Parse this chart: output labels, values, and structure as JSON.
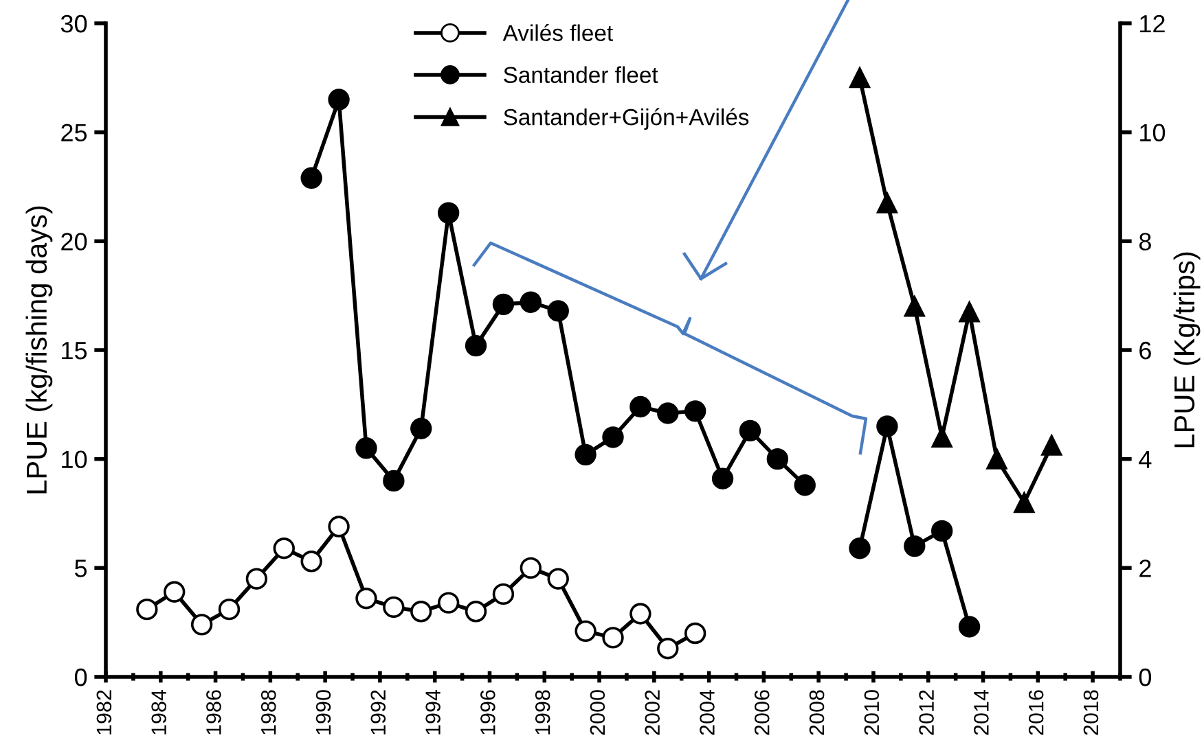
{
  "chart_data": {
    "type": "line",
    "ylabel": "LPUE (kg/fishing days)",
    "y2label": "LPUE (Kg/trips)",
    "xlim": [
      1982,
      2019
    ],
    "xticks": [
      1982,
      1984,
      1986,
      1988,
      1990,
      1992,
      1994,
      1996,
      1998,
      2000,
      2002,
      2004,
      2006,
      2008,
      2010,
      2012,
      2014,
      2016,
      2018
    ],
    "ylim": [
      0,
      30
    ],
    "yticks": [
      0,
      5,
      10,
      15,
      20,
      25,
      30
    ],
    "y2lim": [
      0,
      12
    ],
    "y2ticks": [
      0,
      2,
      4,
      6,
      8,
      10,
      12
    ],
    "grid": false,
    "legend": "top",
    "line_style": "solid",
    "series": [
      {
        "name": "Avilés fleet",
        "color": "#ffffff",
        "marker": "circle",
        "x": [
          1983.5,
          1984.5,
          1985.5,
          1986.5,
          1987.5,
          1988.5,
          1989.5,
          1990.5,
          1991.5,
          1992.5,
          1993.5,
          1994.5,
          1995.5,
          1996.5,
          1997.5,
          1998.5,
          1999.5,
          2000.5,
          2001.5,
          2002.5,
          2003.5
        ],
        "values": [
          3.1,
          3.9,
          2.4,
          3.1,
          4.5,
          5.9,
          5.3,
          6.9,
          3.6,
          3.2,
          3.0,
          3.4,
          3.0,
          3.8,
          5.0,
          4.5,
          2.1,
          1.8,
          2.9,
          1.3,
          2.0
        ]
      },
      {
        "name": "Santander fleet",
        "color": "#000000",
        "marker": "circle",
        "x": [
          1989.5,
          1990.5,
          1991.5,
          1992.5,
          1993.5,
          1994.5,
          1995.5,
          1996.5,
          1997.5,
          1998.5,
          1999.5,
          2000.5,
          2001.5,
          2002.5,
          2003.5,
          2004.5,
          2005.5,
          2006.5,
          2007.5,
          2008.5,
          2009.5,
          2010.5,
          2011.5,
          2012.5,
          2013.5
        ],
        "values": [
          22.9,
          26.5,
          10.5,
          9.0,
          11.4,
          21.3,
          15.2,
          17.1,
          17.2,
          16.8,
          10.2,
          11.0,
          12.4,
          12.1,
          12.2,
          9.1,
          11.3,
          10.0,
          8.8,
          null,
          5.9,
          11.5,
          6.0,
          6.7,
          2.3
        ]
      },
      {
        "name": "Santander+Gijón+Avilés",
        "color": "#000000",
        "marker": "triangle",
        "axis": "y2",
        "x": [
          2009.5,
          2010.5,
          2011.5,
          2012.5,
          2013.5,
          2014.5,
          2015.5,
          2016.5
        ],
        "values": [
          11.0,
          8.7,
          6.8,
          4.4,
          6.7,
          4.0,
          3.2,
          4.25
        ]
      }
    ]
  }
}
